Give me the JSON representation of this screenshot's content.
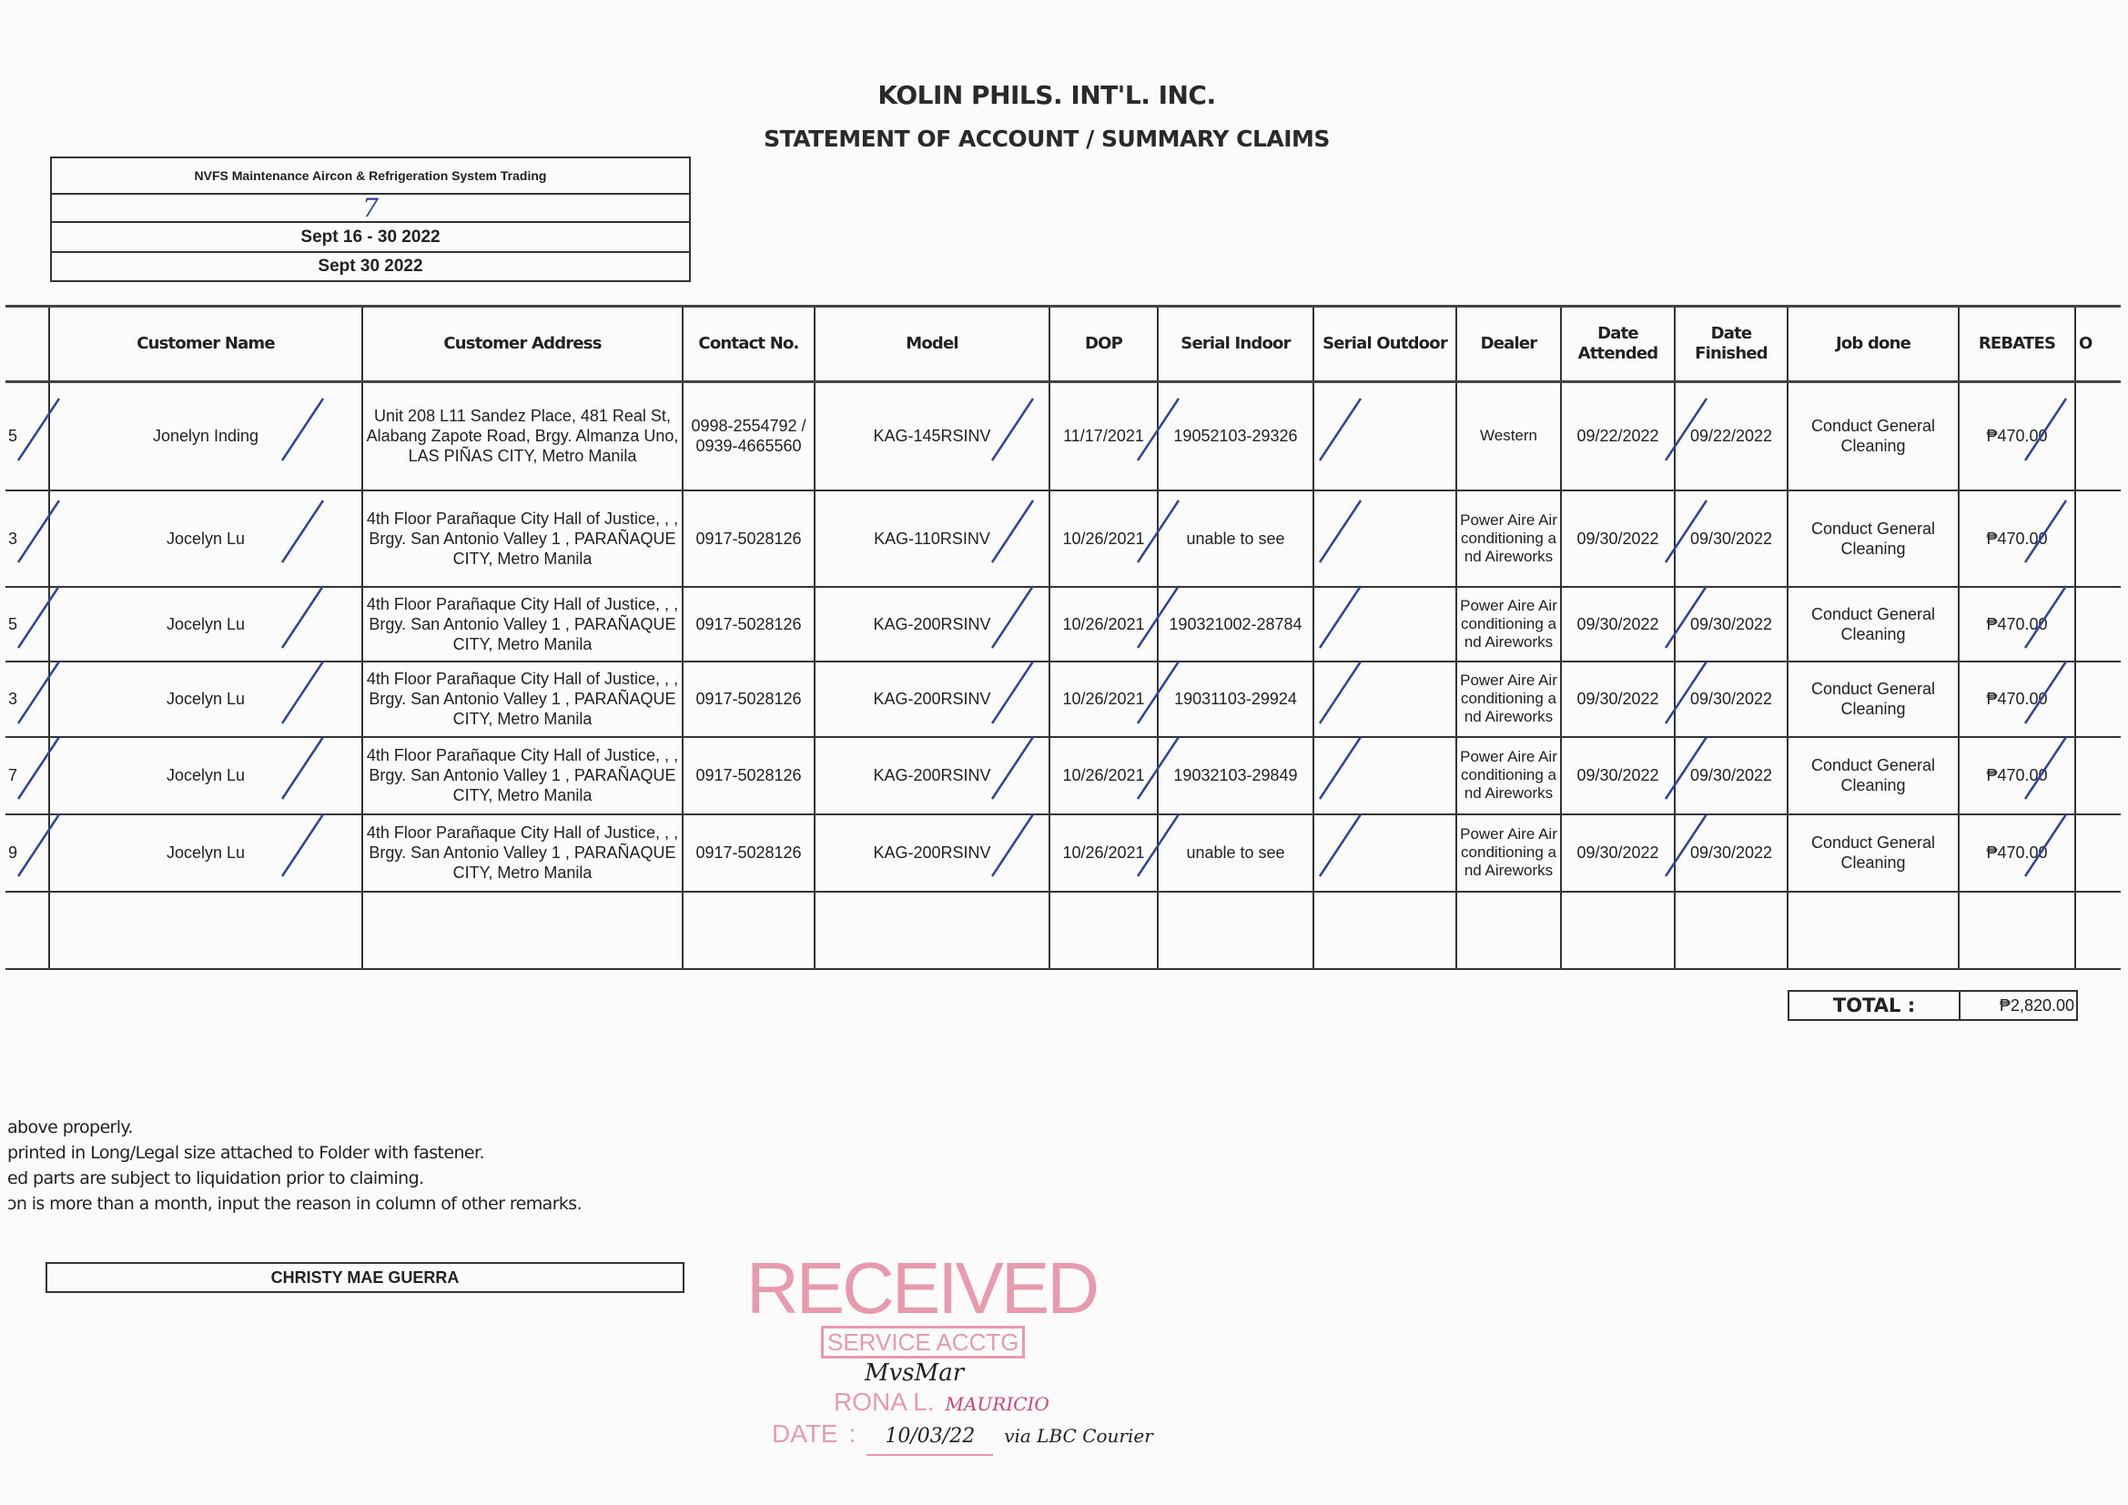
{
  "header": {
    "company": "KOLIN PHILS. INT'L. INC.",
    "document_title": "STATEMENT OF ACCOUNT / SUMMARY CLAIMS"
  },
  "info": {
    "service_center": "NVFS Maintenance Aircon & Refrigeration System Trading",
    "handwritten_no": "7",
    "period": "Sept 16 - 30 2022",
    "date": "Sept 30 2022"
  },
  "table": {
    "columns": [
      "",
      "Customer Name",
      "Customer Address",
      "Contact No.",
      "Model",
      "DOP",
      "Serial Indoor",
      "Serial Outdoor",
      "Dealer",
      "Date Attended",
      "Date Finished",
      "Job done",
      "REBATES",
      "O"
    ],
    "rows": [
      {
        "no": "5",
        "name": "Jonelyn Inding",
        "address": "Unit 208 L11 Sandez Place, 481 Real St, Alabang Zapote Road, Brgy. Almanza Uno, LAS PIÑAS CITY, Metro Manila",
        "contact": "0998-2554792 / 0939-4665560",
        "model": "KAG-145RSINV",
        "dop": "11/17/2021",
        "serial_indoor": "19052103-29326",
        "serial_outdoor": "",
        "dealer": "Western",
        "date_attended": "09/22/2022",
        "date_finished": "09/22/2022",
        "job": "Conduct General Cleaning",
        "rebate": "₱470.00"
      },
      {
        "no": "3",
        "name": "Jocelyn Lu",
        "address": "4th Floor Parañaque City Hall of Justice, , , Brgy. San Antonio Valley 1 , PARAÑAQUE CITY, Metro Manila",
        "contact": "0917-5028126",
        "model": "KAG-110RSINV",
        "dop": "10/26/2021",
        "serial_indoor": "unable to see",
        "serial_outdoor": "",
        "dealer": "Power Aire Airconditioning and Aireworks",
        "date_attended": "09/30/2022",
        "date_finished": "09/30/2022",
        "job": "Conduct General Cleaning",
        "rebate": "₱470.00"
      },
      {
        "no": "5",
        "name": "Jocelyn Lu",
        "address": "4th Floor Parañaque City Hall of Justice, , , Brgy. San Antonio Valley 1 , PARAÑAQUE CITY, Metro Manila",
        "contact": "0917-5028126",
        "model": "KAG-200RSINV",
        "dop": "10/26/2021",
        "serial_indoor": "190321002-28784",
        "serial_outdoor": "",
        "dealer": "Power Aire Airconditioning and Aireworks",
        "date_attended": "09/30/2022",
        "date_finished": "09/30/2022",
        "job": "Conduct General Cleaning",
        "rebate": "₱470.00"
      },
      {
        "no": "3",
        "name": "Jocelyn Lu",
        "address": "4th Floor Parañaque City Hall of Justice, , , Brgy. San Antonio Valley 1 , PARAÑAQUE CITY, Metro Manila",
        "contact": "0917-5028126",
        "model": "KAG-200RSINV",
        "dop": "10/26/2021",
        "serial_indoor": "19031103-29924",
        "serial_outdoor": "",
        "dealer": "Power Aire Airconditioning and Aireworks",
        "date_attended": "09/30/2022",
        "date_finished": "09/30/2022",
        "job": "Conduct General Cleaning",
        "rebate": "₱470.00"
      },
      {
        "no": "7",
        "name": "Jocelyn Lu",
        "address": "4th Floor Parañaque City Hall of Justice, , , Brgy. San Antonio Valley 1 , PARAÑAQUE CITY, Metro Manila",
        "contact": "0917-5028126",
        "model": "KAG-200RSINV",
        "dop": "10/26/2021",
        "serial_indoor": "19032103-29849",
        "serial_outdoor": "",
        "dealer": "Power Aire Airconditioning and Aireworks",
        "date_attended": "09/30/2022",
        "date_finished": "09/30/2022",
        "job": "Conduct General Cleaning",
        "rebate": "₱470.00"
      },
      {
        "no": "9",
        "name": "Jocelyn Lu",
        "address": "4th Floor Parañaque City Hall of Justice, , , Brgy. San Antonio Valley 1 , PARAÑAQUE CITY, Metro Manila",
        "contact": "0917-5028126",
        "model": "KAG-200RSINV",
        "dop": "10/26/2021",
        "serial_indoor": "unable to see",
        "serial_outdoor": "",
        "dealer": "Power Aire Airconditioning and Aireworks",
        "date_attended": "09/30/2022",
        "date_finished": "09/30/2022",
        "job": "Conduct General Cleaning",
        "rebate": "₱470.00"
      }
    ]
  },
  "total": {
    "label": "TOTAL :",
    "value": "₱2,820.00"
  },
  "notes": [
    "above properly.",
    "printed in Long/Legal size attached to Folder with fastener.",
    "ed parts are subject to liquidation prior to claiming.",
    "ɔn is more than a month, input the reason in column of other remarks."
  ],
  "signatory": "CHRISTY MAE GUERRA",
  "stamp": {
    "received": "RECEIVED",
    "dept": "SERVICE ACCTG",
    "receiver": "RONA L.",
    "receiver_handwritten": "MAURICIO",
    "date_label": "DATE",
    "date_value": "10/03/22",
    "via": "via LBC Courier",
    "signature": "MvsMar",
    "color": "#e89aae"
  },
  "colors": {
    "check_ink": "#33449a"
  }
}
